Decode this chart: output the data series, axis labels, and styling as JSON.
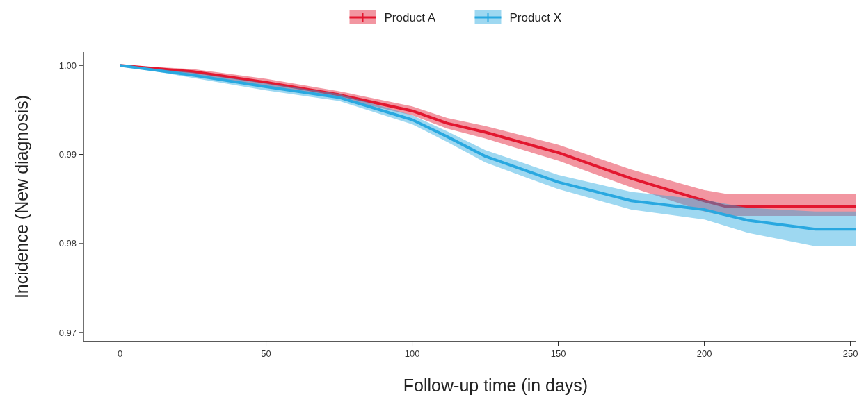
{
  "chart_data": {
    "type": "line",
    "xlabel": "Follow-up time (in days)",
    "ylabel": "Incidence (New diagnosis)",
    "xlim": [
      -12.5,
      252
    ],
    "ylim": [
      0.969,
      1.0015
    ],
    "xticks": [
      0,
      50,
      100,
      150,
      200,
      250
    ],
    "yticks": [
      {
        "value": 0.97,
        "label": "0.97"
      },
      {
        "value": 0.98,
        "label": "0.98"
      },
      {
        "value": 0.99,
        "label": "0.99"
      },
      {
        "value": 1.0,
        "label": "1.00"
      }
    ],
    "grid": false,
    "legend": "top",
    "series": [
      {
        "name": "Product A",
        "color": "#e3172f",
        "x": [
          0,
          25,
          50,
          75,
          100,
          112,
          125,
          150,
          175,
          200,
          207,
          252
        ],
        "values": [
          1.0,
          0.9993,
          0.9981,
          0.9967,
          0.9949,
          0.9935,
          0.9925,
          0.9902,
          0.9873,
          0.9848,
          0.9842,
          0.9842
        ],
        "lower": [
          1.0,
          0.999,
          0.9977,
          0.9963,
          0.9944,
          0.9929,
          0.9918,
          0.9893,
          0.9863,
          0.9836,
          0.9831,
          0.9831
        ],
        "upper": [
          1.0,
          0.9996,
          0.9985,
          0.9971,
          0.9954,
          0.9941,
          0.9932,
          0.9911,
          0.9883,
          0.986,
          0.9856,
          0.9856
        ]
      },
      {
        "name": "Product X",
        "color": "#29a8e0",
        "x": [
          0,
          25,
          50,
          75,
          100,
          112,
          125,
          150,
          175,
          200,
          215,
          238,
          252
        ],
        "values": [
          1.0,
          0.9989,
          0.9976,
          0.9964,
          0.9939,
          0.992,
          0.9898,
          0.9869,
          0.9848,
          0.9838,
          0.9826,
          0.9816,
          0.9816
        ],
        "lower": [
          1.0,
          0.9986,
          0.9972,
          0.996,
          0.9934,
          0.9914,
          0.9891,
          0.9861,
          0.9838,
          0.9827,
          0.9812,
          0.9797,
          0.9797
        ],
        "upper": [
          1.0,
          0.9992,
          0.998,
          0.9968,
          0.9944,
          0.9926,
          0.9905,
          0.9877,
          0.9858,
          0.9849,
          0.984,
          0.9836,
          0.9836
        ]
      }
    ]
  }
}
